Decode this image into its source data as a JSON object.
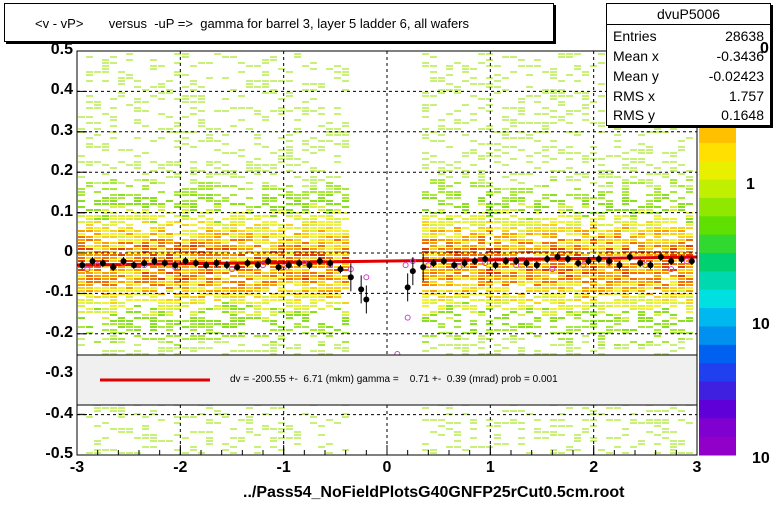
{
  "title": "<v - vP>       versus  -uP =>  gamma for barrel 3, layer 5 ladder 6, all wafers",
  "stats": {
    "name": "dvuP5006",
    "rows": [
      {
        "label": "Entries",
        "value": "28638"
      },
      {
        "label": "Mean x",
        "value": "-0.3436"
      },
      {
        "label": "Mean y",
        "value": "-0.02423"
      },
      {
        "label": "RMS x",
        "value": "1.757"
      },
      {
        "label": "RMS y",
        "value": "0.1648"
      }
    ]
  },
  "fit_legend": "dv = -200.55 +-  6.71 (mkm) gamma =    0.71 +-  0.39 (mrad) prob = 0.001",
  "footer": "../Pass54_NoFieldPlotsG40GNFP25rCut0.5cm.root",
  "colors": {
    "fit_line": "#e00000",
    "profile_black": "#000000",
    "profile_magenta": "#d040d0",
    "grid": "#000000"
  },
  "chart_data": {
    "type": "heatmap",
    "x_range": [
      -3,
      3
    ],
    "y_range": [
      -0.5,
      0.5
    ],
    "x_ticks": [
      "-3",
      "-2",
      "-1",
      "0",
      "1",
      "2",
      "3"
    ],
    "y_ticks": [
      "-0.5",
      "-0.4",
      "-0.3",
      "-0.2",
      "-0.1",
      "0",
      "0.1",
      "0.2",
      "0.3",
      "0.4",
      "0.5"
    ],
    "z_scale": "log",
    "z_ticks": [
      "1",
      "10",
      "10"
    ],
    "z_partial_label": "0",
    "grid": true,
    "gap_x_range": [
      -0.35,
      0.3
    ],
    "fit_line": {
      "x": [
        -3,
        3
      ],
      "y": [
        -0.03,
        -0.01
      ]
    },
    "profile_black": {
      "x": [
        -2.95,
        -2.85,
        -2.75,
        -2.65,
        -2.55,
        -2.45,
        -2.35,
        -2.25,
        -2.15,
        -2.05,
        -1.95,
        -1.85,
        -1.75,
        -1.65,
        -1.55,
        -1.45,
        -1.35,
        -1.25,
        -1.15,
        -1.05,
        -0.95,
        -0.85,
        -0.75,
        -0.65,
        -0.55,
        -0.45,
        -0.35,
        -0.25,
        -0.2,
        0.2,
        0.25,
        0.35,
        0.45,
        0.55,
        0.65,
        0.75,
        0.85,
        0.95,
        1.05,
        1.15,
        1.25,
        1.35,
        1.45,
        1.55,
        1.65,
        1.75,
        1.85,
        1.95,
        2.05,
        2.15,
        2.25,
        2.35,
        2.45,
        2.55,
        2.65,
        2.75,
        2.85,
        2.95
      ],
      "y": [
        -0.03,
        -0.02,
        -0.025,
        -0.035,
        -0.02,
        -0.03,
        -0.025,
        -0.02,
        -0.025,
        -0.03,
        -0.02,
        -0.025,
        -0.03,
        -0.025,
        -0.03,
        -0.035,
        -0.025,
        -0.03,
        -0.02,
        -0.035,
        -0.03,
        -0.025,
        -0.03,
        -0.02,
        -0.025,
        -0.04,
        -0.06,
        -0.09,
        -0.115,
        -0.085,
        -0.045,
        -0.035,
        -0.025,
        -0.02,
        -0.03,
        -0.025,
        -0.02,
        -0.015,
        -0.03,
        -0.02,
        -0.02,
        -0.025,
        -0.03,
        -0.015,
        -0.01,
        -0.015,
        -0.025,
        -0.02,
        -0.015,
        -0.02,
        -0.03,
        -0.01,
        -0.025,
        -0.03,
        -0.01,
        -0.02,
        -0.015,
        -0.02
      ]
    },
    "profile_magenta": {
      "x": [
        -2.9,
        -2.8,
        -2.55,
        -2.35,
        -2.05,
        -1.75,
        -1.5,
        -1.2,
        -1.0,
        -0.8,
        -0.55,
        -0.35,
        -0.2,
        0.1,
        0.18,
        0.2,
        0.25,
        0.4,
        0.7,
        0.95,
        1.25,
        1.6,
        1.9,
        2.15,
        2.5,
        2.75,
        2.9
      ],
      "y": [
        -0.04,
        -0.03,
        -0.025,
        -0.03,
        -0.035,
        -0.03,
        -0.04,
        -0.03,
        -0.035,
        -0.025,
        -0.03,
        -0.04,
        -0.06,
        -0.25,
        -0.03,
        -0.16,
        -0.02,
        -0.03,
        -0.035,
        -0.025,
        -0.03,
        -0.04,
        -0.03,
        -0.025,
        -0.03,
        -0.04,
        -0.02
      ]
    }
  }
}
